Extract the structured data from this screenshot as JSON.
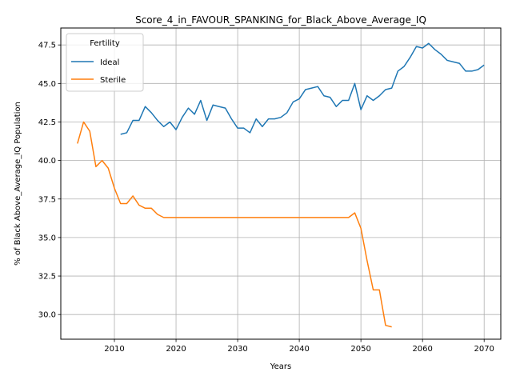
{
  "chart_data": {
    "type": "line",
    "title": "Score_4_in_FAVOUR_SPANKING_for_Black_Above_Average_IQ",
    "xlabel": "Years",
    "ylabel": "% of Black Above_Average_IQ Population",
    "xlim": [
      2001.3,
      2072.7
    ],
    "ylim": [
      28.4,
      48.6
    ],
    "xticks": [
      2010,
      2020,
      2030,
      2040,
      2050,
      2060,
      2070
    ],
    "yticks": [
      30.0,
      32.5,
      35.0,
      37.5,
      40.0,
      42.5,
      45.0,
      47.5
    ],
    "xtick_labels": [
      "2010",
      "2020",
      "2030",
      "2040",
      "2050",
      "2060",
      "2070"
    ],
    "ytick_labels": [
      "30.0",
      "32.5",
      "35.0",
      "37.5",
      "40.0",
      "42.5",
      "45.0",
      "47.5"
    ],
    "grid": true,
    "legend": {
      "title": "Fertility",
      "position": "top-left"
    },
    "series": [
      {
        "name": "Ideal",
        "color": "#1f77b4",
        "x": [
          2011,
          2012,
          2013,
          2014,
          2015,
          2016,
          2017,
          2018,
          2019,
          2020,
          2021,
          2022,
          2023,
          2024,
          2025,
          2026,
          2027,
          2028,
          2029,
          2030,
          2031,
          2032,
          2033,
          2034,
          2035,
          2036,
          2037,
          2038,
          2039,
          2040,
          2041,
          2042,
          2043,
          2044,
          2045,
          2046,
          2047,
          2048,
          2049,
          2050,
          2051,
          2052,
          2053,
          2054,
          2055,
          2056,
          2057,
          2058,
          2059,
          2060,
          2061,
          2062,
          2063,
          2064,
          2065,
          2066,
          2067,
          2068,
          2069,
          2070
        ],
        "y": [
          41.7,
          41.8,
          42.6,
          42.6,
          43.5,
          43.1,
          42.6,
          42.2,
          42.5,
          42.0,
          42.8,
          43.4,
          43.0,
          43.9,
          42.6,
          43.6,
          43.5,
          43.4,
          42.7,
          42.1,
          42.1,
          41.8,
          42.7,
          42.2,
          42.7,
          42.7,
          42.8,
          43.1,
          43.8,
          44.0,
          44.6,
          44.7,
          44.8,
          44.2,
          44.1,
          43.5,
          43.9,
          43.9,
          45.0,
          43.3,
          44.2,
          43.9,
          44.2,
          44.6,
          44.7,
          45.8,
          46.1,
          46.7,
          47.4,
          47.3,
          47.6,
          47.2,
          46.9,
          46.5,
          46.4,
          46.3,
          45.8,
          45.8,
          45.9,
          46.2
        ]
      },
      {
        "name": "Sterile",
        "color": "#ff7f0e",
        "x": [
          2004,
          2005,
          2006,
          2007,
          2008,
          2009,
          2010,
          2011,
          2012,
          2013,
          2014,
          2015,
          2016,
          2017,
          2018,
          2019,
          2020,
          2021,
          2022,
          2023,
          2024,
          2025,
          2026,
          2027,
          2028,
          2029,
          2030,
          2031,
          2032,
          2033,
          2034,
          2035,
          2036,
          2037,
          2038,
          2039,
          2040,
          2041,
          2042,
          2043,
          2044,
          2045,
          2046,
          2047,
          2048,
          2049,
          2050,
          2051,
          2052,
          2053,
          2054,
          2055
        ],
        "y": [
          41.1,
          42.5,
          41.9,
          39.6,
          40.0,
          39.5,
          38.2,
          37.2,
          37.2,
          37.7,
          37.1,
          36.9,
          36.9,
          36.5,
          36.3,
          36.3,
          36.3,
          36.3,
          36.3,
          36.3,
          36.3,
          36.3,
          36.3,
          36.3,
          36.3,
          36.3,
          36.3,
          36.3,
          36.3,
          36.3,
          36.3,
          36.3,
          36.3,
          36.3,
          36.3,
          36.3,
          36.3,
          36.3,
          36.3,
          36.3,
          36.3,
          36.3,
          36.3,
          36.3,
          36.3,
          36.6,
          35.6,
          33.5,
          31.6,
          31.6,
          29.3,
          29.2
        ]
      }
    ]
  }
}
